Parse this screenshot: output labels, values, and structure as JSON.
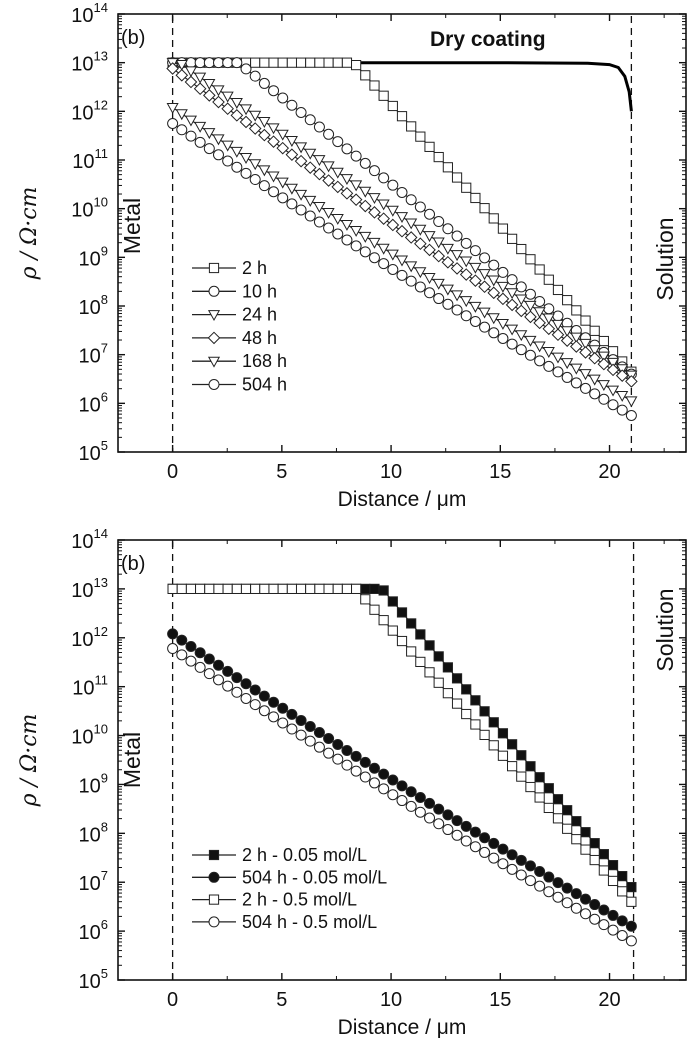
{
  "chart_data": [
    {
      "type": "line",
      "panel_label": "(b)",
      "xlabel": "Distance / μm",
      "ylabel": "ρ / Ω·cm",
      "xlim": [
        -2.5,
        23.5
      ],
      "ylim_log10": [
        5,
        14
      ],
      "y_scale": "log",
      "xticks": [
        "0",
        "5",
        "10",
        "15",
        "20"
      ],
      "yticks": [
        {
          "base": "10",
          "exp": "5"
        },
        {
          "base": "10",
          "exp": "6"
        },
        {
          "base": "10",
          "exp": "7"
        },
        {
          "base": "10",
          "exp": "8"
        },
        {
          "base": "10",
          "exp": "9"
        },
        {
          "base": "10",
          "exp": "10"
        },
        {
          "base": "10",
          "exp": "11"
        },
        {
          "base": "10",
          "exp": "12"
        },
        {
          "base": "10",
          "exp": "13"
        },
        {
          "base": "10",
          "exp": "14"
        }
      ],
      "left_label": "Metal",
      "right_label": "Solution",
      "annotation": "Dry coating",
      "metal_boundary_x": 0,
      "solution_boundary_x": 21,
      "legend_position": "lower-left",
      "dry_coating": {
        "x": [
          0,
          5,
          10,
          15,
          19,
          20,
          20.4,
          20.7,
          20.9,
          21
        ],
        "log10_y": [
          13,
          13,
          13,
          13,
          12.99,
          12.96,
          12.9,
          12.72,
          12.4,
          12.0
        ]
      },
      "series": [
        {
          "name": "2 h",
          "marker": "square",
          "fill": "open",
          "x_start": 0,
          "x_end": 21,
          "log10_y_start": 13,
          "plateau_end_x": 8.3,
          "log10_y_end": 6.65
        },
        {
          "name": "10 h",
          "marker": "circle",
          "fill": "open",
          "x_start": 0,
          "x_end": 21,
          "log10_y_start": 13,
          "plateau_end_x": 3.0,
          "log10_y_end": 6.6
        },
        {
          "name": "24 h",
          "marker": "triangle-down",
          "fill": "open",
          "x_start": 0,
          "x_end": 21,
          "log10_y_start": 13,
          "plateau_end_x": 0.3,
          "log10_y_end": 6.58
        },
        {
          "name": "48 h",
          "marker": "diamond",
          "fill": "open",
          "x_start": 0,
          "x_end": 21,
          "log10_y_start": 12.88,
          "plateau_end_x": 0,
          "log10_y_end": 6.45
        },
        {
          "name": "168 h",
          "marker": "triangle-down",
          "fill": "open",
          "x_start": 0,
          "x_end": 21,
          "log10_y_start": 12.08,
          "plateau_end_x": 0,
          "log10_y_end": 6.05
        },
        {
          "name": "504 h",
          "marker": "circle",
          "fill": "open",
          "x_start": 0,
          "x_end": 21,
          "log10_y_start": 11.75,
          "plateau_end_x": 0,
          "log10_y_end": 5.75
        }
      ]
    },
    {
      "type": "line",
      "panel_label": "(b)",
      "xlabel": "Distance / μm",
      "ylabel": "ρ / Ω·cm",
      "xlim": [
        -2.5,
        23.5
      ],
      "ylim_log10": [
        5,
        14
      ],
      "y_scale": "log",
      "xticks": [
        "0",
        "5",
        "10",
        "15",
        "20"
      ],
      "yticks": [
        {
          "base": "10",
          "exp": "5"
        },
        {
          "base": "10",
          "exp": "6"
        },
        {
          "base": "10",
          "exp": "7"
        },
        {
          "base": "10",
          "exp": "8"
        },
        {
          "base": "10",
          "exp": "9"
        },
        {
          "base": "10",
          "exp": "10"
        },
        {
          "base": "10",
          "exp": "11"
        },
        {
          "base": "10",
          "exp": "12"
        },
        {
          "base": "10",
          "exp": "13"
        },
        {
          "base": "10",
          "exp": "14"
        }
      ],
      "left_label": "Metal",
      "right_label": "Solution",
      "metal_boundary_x": 0,
      "solution_boundary_x": 21.1,
      "legend_position": "lower-left",
      "series": [
        {
          "name": "2 h - 0.05 mol/L",
          "marker": "square",
          "fill": "filled",
          "x_start": 0,
          "x_end": 21,
          "log10_y_start": 13,
          "plateau_end_x": 9.6,
          "log10_y_end": 6.9
        },
        {
          "name": "504 h - 0.05 mol/L",
          "marker": "circle",
          "fill": "filled",
          "x_start": 0,
          "x_end": 21,
          "log10_y_start": 12.08,
          "plateau_end_x": 0,
          "log10_y_end": 6.1
        },
        {
          "name": "2 h - 0.5 mol/L",
          "marker": "square",
          "fill": "open",
          "x_start": 0,
          "x_end": 21,
          "log10_y_start": 13,
          "plateau_end_x": 8.4,
          "log10_y_end": 6.6
        },
        {
          "name": "504 h - 0.5 mol/L",
          "marker": "circle",
          "fill": "open",
          "x_start": 0,
          "x_end": 21,
          "log10_y_start": 11.78,
          "plateau_end_x": 0,
          "log10_y_end": 5.8
        }
      ]
    }
  ]
}
